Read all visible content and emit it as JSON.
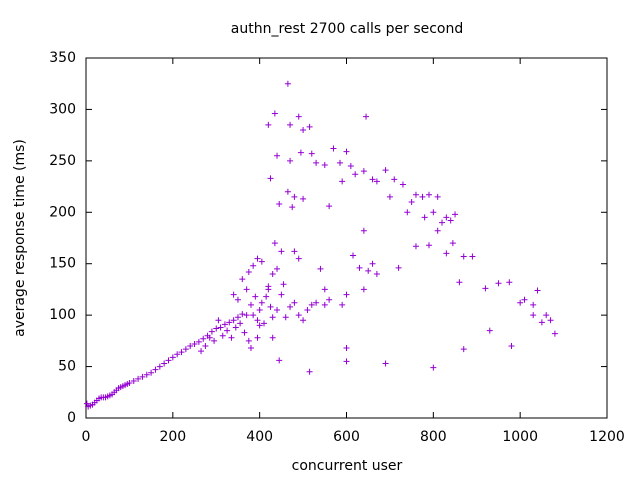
{
  "chart_data": {
    "type": "scatter",
    "title": "authn_rest 2700 calls per second",
    "x_label": "concurrent user",
    "y_label": "average response time (ms)",
    "color": "#9400d3",
    "grid": false,
    "xlim": [
      0,
      1200
    ],
    "xticks": [
      0,
      200,
      400,
      600,
      800,
      1000,
      1200
    ],
    "ylim": [
      0,
      350
    ],
    "yticks": [
      0,
      50,
      100,
      150,
      200,
      250,
      300,
      350
    ],
    "x": [
      2,
      5,
      10,
      15,
      20,
      25,
      30,
      35,
      40,
      45,
      50,
      55,
      60,
      65,
      70,
      75,
      80,
      85,
      90,
      95,
      100,
      110,
      120,
      130,
      140,
      150,
      160,
      170,
      180,
      190,
      200,
      210,
      220,
      230,
      240,
      250,
      260,
      270,
      280,
      290,
      300,
      310,
      320,
      330,
      340,
      350,
      360,
      265,
      275,
      285,
      295,
      305,
      315,
      325,
      335,
      345,
      355,
      365,
      375,
      370,
      380,
      385,
      390,
      395,
      400,
      405,
      410,
      415,
      420,
      425,
      430,
      360,
      375,
      385,
      395,
      405,
      420,
      430,
      440,
      450,
      455,
      460,
      470,
      480,
      490,
      500,
      510,
      520,
      530,
      540,
      550,
      340,
      350,
      370,
      400,
      380,
      395,
      430,
      440,
      445,
      465,
      435,
      420,
      470,
      490,
      500,
      515,
      440,
      470,
      495,
      520,
      530,
      550,
      570,
      585,
      600,
      645,
      425,
      465,
      480,
      475,
      445,
      500,
      560,
      590,
      610,
      620,
      640,
      660,
      670,
      690,
      700,
      710,
      730,
      740,
      750,
      760,
      775,
      790,
      800,
      810,
      820,
      830,
      840,
      850,
      780,
      760,
      790,
      810,
      830,
      845,
      870,
      890,
      435,
      450,
      480,
      490,
      615,
      640,
      650,
      630,
      660,
      720,
      860,
      920,
      950,
      975,
      1000,
      1010,
      1040,
      1030,
      1050,
      1030,
      1060,
      1070,
      1080,
      930,
      980,
      870,
      600,
      600,
      690,
      800,
      515,
      590,
      600,
      640,
      670,
      550,
      560
    ],
    "values": [
      14,
      11,
      12,
      13,
      15,
      17,
      19,
      20,
      20,
      20,
      21,
      22,
      23,
      25,
      27,
      29,
      30,
      31,
      32,
      33,
      34,
      36,
      38,
      40,
      42,
      44,
      47,
      50,
      53,
      56,
      59,
      62,
      64,
      67,
      70,
      72,
      74,
      77,
      80,
      84,
      87,
      88,
      91,
      93,
      95,
      98,
      101,
      65,
      70,
      78,
      75,
      95,
      80,
      85,
      78,
      88,
      92,
      83,
      75,
      100,
      110,
      100,
      118,
      95,
      105,
      112,
      92,
      118,
      125,
      108,
      98,
      135,
      142,
      148,
      155,
      152,
      128,
      140,
      145,
      120,
      130,
      98,
      108,
      112,
      100,
      95,
      105,
      110,
      112,
      145,
      125,
      120,
      115,
      125,
      90,
      68,
      78,
      78,
      105,
      56,
      325,
      296,
      285,
      285,
      293,
      280,
      283,
      255,
      250,
      258,
      257,
      248,
      246,
      262,
      248,
      259,
      293,
      233,
      220,
      215,
      205,
      208,
      213,
      206,
      230,
      245,
      237,
      240,
      232,
      230,
      241,
      215,
      232,
      227,
      200,
      210,
      217,
      215,
      217,
      200,
      215,
      190,
      195,
      192,
      198,
      195,
      167,
      168,
      182,
      160,
      170,
      157,
      157,
      170,
      162,
      162,
      155,
      158,
      182,
      143,
      146,
      150,
      146,
      132,
      126,
      131,
      132,
      112,
      115,
      124,
      110,
      93,
      100,
      100,
      95,
      82,
      85,
      70,
      67,
      68,
      55,
      53,
      49,
      45,
      110,
      120,
      125,
      140,
      110,
      115
    ]
  }
}
